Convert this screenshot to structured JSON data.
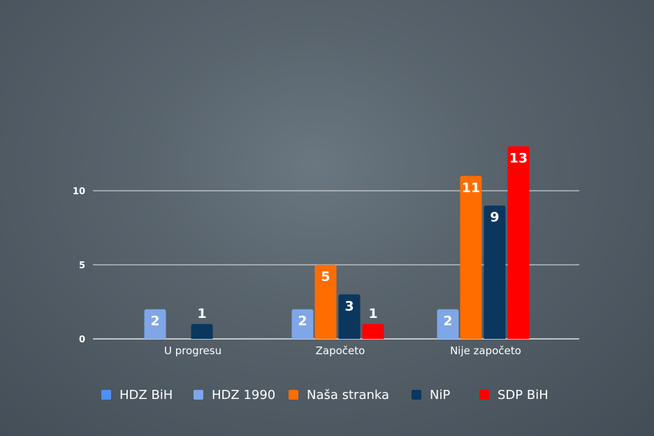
{
  "chart_data": {
    "type": "bar",
    "categories": [
      "U progresu",
      "Započeto",
      "Nije započeto"
    ],
    "series": [
      {
        "name": "HDZ BiH",
        "color": "#4f8ff7",
        "values": [
          null,
          null,
          null
        ]
      },
      {
        "name": "HDZ 1990",
        "color": "#7fa6e6",
        "values": [
          2,
          2,
          2
        ]
      },
      {
        "name": "Naša stranka",
        "color": "#ff6d00",
        "values": [
          null,
          5,
          11
        ]
      },
      {
        "name": "NiP",
        "color": "#0b365e",
        "values": [
          1,
          3,
          9
        ]
      },
      {
        "name": "SDP BiH",
        "color": "#ff0000",
        "values": [
          null,
          1,
          13
        ]
      }
    ],
    "y_ticks": [
      0,
      5,
      10
    ],
    "ylim": [
      0,
      13
    ],
    "grid": true,
    "legend_position": "bottom",
    "data_label_outside_color": "#ffffff",
    "data_label_inside_color": "#ffffff"
  }
}
